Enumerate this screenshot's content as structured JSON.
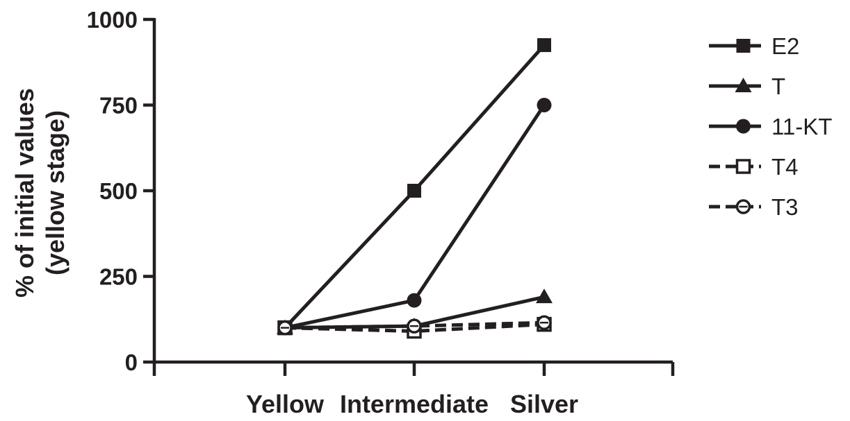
{
  "chart_data": {
    "type": "line",
    "categories": [
      "Yellow",
      "Intermediate",
      "Silver"
    ],
    "ylabel_lines": [
      "% of initial values",
      "(yellow stage)"
    ],
    "xlabel": "",
    "ylim": [
      0,
      1000
    ],
    "yticks": [
      0,
      250,
      500,
      750,
      1000
    ],
    "grid": false,
    "legend_position": "right",
    "colors": {
      "ink": "#231f20",
      "background": "#ffffff"
    },
    "series": [
      {
        "name": "E2",
        "marker": "square-filled",
        "line": "solid",
        "values": [
          100,
          500,
          925
        ]
      },
      {
        "name": "T",
        "marker": "triangle-filled",
        "line": "solid",
        "values": [
          100,
          105,
          190
        ]
      },
      {
        "name": "11-KT",
        "marker": "circle-filled",
        "line": "solid",
        "values": [
          100,
          180,
          750
        ]
      },
      {
        "name": "T4",
        "marker": "square-open",
        "line": "dashed",
        "values": [
          100,
          90,
          110
        ]
      },
      {
        "name": "T3",
        "marker": "circle-open",
        "line": "dashed",
        "values": [
          100,
          105,
          115
        ]
      }
    ]
  }
}
